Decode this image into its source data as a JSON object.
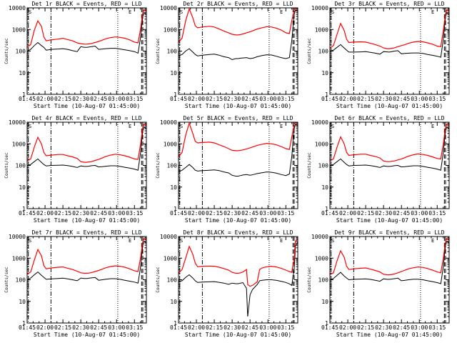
{
  "shared": {
    "xlabel": "Start Time (10-Aug-07 01:45:00)",
    "ylabel": "Counts/sec",
    "x_tick_labels": [
      "01:45",
      "02:00",
      "02:15",
      "02:30",
      "02:45",
      "03:00",
      "03:15"
    ],
    "y_tick_labels": [
      "1",
      "10",
      "100",
      "1000",
      "10000"
    ],
    "annotation_left": "S",
    "annotation_right": "E",
    "colors": {
      "events": "#000000",
      "lld": "#ff0000",
      "axes": "#000000"
    }
  },
  "chart_data": [
    {
      "type": "line",
      "title": "Det 1r BLACK = Events, RED = LLD",
      "x_unit": "minutes after 01:45",
      "xlim": [
        0,
        100
      ],
      "ylog": true,
      "ylim": [
        1,
        10000
      ],
      "x": [
        0,
        3,
        6,
        9,
        12,
        14,
        16,
        20,
        26,
        30,
        34,
        38,
        42,
        45,
        48,
        50,
        52,
        54,
        57,
        60,
        63,
        66,
        70,
        74,
        78,
        82,
        86,
        90,
        93,
        95,
        97,
        98,
        100
      ],
      "series": [
        {
          "name": "LLD",
          "values": [
            150,
            200,
            900,
            2500,
            1400,
            450,
            300,
            330,
            360,
            390,
            340,
            300,
            240,
            220,
            210,
            210,
            215,
            225,
            250,
            280,
            320,
            370,
            420,
            450,
            430,
            390,
            330,
            260,
            240,
            1000,
            6000,
            8000,
            7000
          ]
        },
        {
          "name": "Events",
          "values": [
            100,
            120,
            180,
            250,
            180,
            150,
            110,
            120,
            125,
            130,
            120,
            105,
            95,
            160,
            150,
            150,
            155,
            160,
            170,
            120,
            125,
            130,
            135,
            135,
            125,
            115,
            105,
            95,
            80,
            400,
            4000,
            6000,
            5000
          ]
        }
      ],
      "vlines_dashdot": [
        1,
        20
      ],
      "vlines_dotted": [
        76
      ],
      "vlines_dashed": [
        96,
        97
      ]
    },
    {
      "type": "line",
      "title": "Det 2r BLACK = Events, RED = LLD",
      "x_unit": "minutes after 01:45",
      "xlim": [
        0,
        100
      ],
      "ylog": true,
      "ylim": [
        1,
        10000
      ],
      "x": [
        0,
        3,
        6,
        9,
        12,
        14,
        16,
        20,
        26,
        30,
        34,
        38,
        42,
        45,
        48,
        50,
        52,
        54,
        57,
        60,
        63,
        66,
        70,
        74,
        78,
        82,
        86,
        90,
        93,
        95,
        97,
        98,
        100
      ],
      "series": [
        {
          "name": "LLD",
          "values": [
            250,
            400,
            2500,
            9000,
            3500,
            1500,
            1200,
            1300,
            1400,
            1300,
            1050,
            850,
            700,
            600,
            560,
            560,
            580,
            620,
            700,
            780,
            900,
            1050,
            1200,
            1350,
            1300,
            1150,
            950,
            700,
            650,
            2500,
            8000,
            9500,
            9000
          ]
        },
        {
          "name": "Events",
          "values": [
            60,
            70,
            100,
            130,
            90,
            70,
            60,
            65,
            70,
            72,
            65,
            55,
            50,
            40,
            45,
            45,
            47,
            48,
            50,
            45,
            48,
            55,
            62,
            68,
            66,
            58,
            50,
            45,
            50,
            300,
            5000,
            8000,
            7000
          ]
        }
      ],
      "vlines_dashdot": [
        1,
        20
      ],
      "vlines_dotted": [
        76
      ],
      "vlines_dashed": [
        96,
        97
      ]
    },
    {
      "type": "line",
      "title": "Det 3r BLACK = Events, RED = LLD",
      "x_unit": "minutes after 01:45",
      "xlim": [
        0,
        100
      ],
      "ylog": true,
      "ylim": [
        1,
        10000
      ],
      "x": [
        0,
        3,
        6,
        9,
        12,
        14,
        16,
        20,
        26,
        30,
        34,
        38,
        42,
        45,
        48,
        50,
        52,
        54,
        57,
        60,
        63,
        66,
        70,
        74,
        78,
        82,
        86,
        90,
        93,
        95,
        97,
        98,
        100
      ],
      "series": [
        {
          "name": "LLD",
          "values": [
            140,
            180,
            600,
            1900,
            900,
            350,
            250,
            260,
            270,
            260,
            230,
            200,
            170,
            140,
            130,
            130,
            135,
            140,
            160,
            180,
            200,
            230,
            260,
            280,
            270,
            240,
            210,
            170,
            160,
            800,
            5500,
            8000,
            7000
          ]
        },
        {
          "name": "Events",
          "values": [
            100,
            110,
            150,
            200,
            140,
            110,
            90,
            90,
            92,
            94,
            88,
            80,
            72,
            95,
            92,
            90,
            95,
            100,
            105,
            75,
            78,
            80,
            82,
            82,
            78,
            70,
            64,
            58,
            52,
            300,
            4000,
            6000,
            5000
          ]
        }
      ],
      "vlines_dashdot": [
        1,
        20
      ],
      "vlines_dotted": [
        76
      ],
      "vlines_dashed": [
        96,
        97
      ]
    },
    {
      "type": "line",
      "title": "Det 4r BLACK = Events, RED = LLD",
      "x_unit": "minutes after 01:45",
      "xlim": [
        0,
        100
      ],
      "ylog": true,
      "ylim": [
        1,
        10000
      ],
      "x": [
        0,
        3,
        6,
        9,
        12,
        14,
        16,
        20,
        26,
        30,
        34,
        38,
        42,
        45,
        48,
        50,
        52,
        54,
        57,
        60,
        63,
        66,
        70,
        74,
        78,
        82,
        86,
        90,
        93,
        95,
        97,
        98,
        100
      ],
      "series": [
        {
          "name": "LLD",
          "values": [
            160,
            200,
            700,
            2000,
            1000,
            400,
            280,
            300,
            320,
            320,
            280,
            250,
            210,
            150,
            140,
            140,
            145,
            150,
            170,
            190,
            220,
            260,
            300,
            330,
            310,
            280,
            240,
            200,
            190,
            900,
            6000,
            8000,
            7000
          ]
        },
        {
          "name": "Events",
          "values": [
            100,
            110,
            150,
            200,
            140,
            110,
            95,
            100,
            102,
            104,
            98,
            90,
            80,
            95,
            90,
            90,
            93,
            97,
            100,
            85,
            88,
            92,
            96,
            96,
            90,
            82,
            75,
            68,
            60,
            350,
            4000,
            6000,
            5000
          ]
        }
      ],
      "vlines_dashdot": [
        1,
        20
      ],
      "vlines_dotted": [
        76
      ],
      "vlines_dashed": [
        96,
        97
      ]
    },
    {
      "type": "line",
      "title": "Det 5r BLACK = Events, RED = LLD",
      "x_unit": "minutes after 01:45",
      "xlim": [
        0,
        100
      ],
      "ylog": true,
      "ylim": [
        1,
        10000
      ],
      "x": [
        0,
        3,
        6,
        9,
        12,
        14,
        16,
        20,
        26,
        30,
        34,
        38,
        42,
        45,
        48,
        50,
        52,
        54,
        57,
        60,
        63,
        66,
        70,
        74,
        78,
        82,
        86,
        90,
        93,
        95,
        97,
        98,
        100
      ],
      "series": [
        {
          "name": "LLD",
          "values": [
            250,
            400,
            2500,
            9000,
            3000,
            1300,
            1100,
            1150,
            1200,
            1100,
            900,
            750,
            600,
            500,
            480,
            480,
            500,
            520,
            580,
            650,
            740,
            850,
            950,
            1050,
            1000,
            900,
            750,
            600,
            550,
            2000,
            8000,
            9500,
            9000
          ]
        },
        {
          "name": "Events",
          "values": [
            50,
            60,
            80,
            110,
            80,
            60,
            55,
            58,
            60,
            62,
            58,
            50,
            45,
            35,
            32,
            32,
            34,
            36,
            38,
            35,
            38,
            42,
            46,
            50,
            48,
            44,
            38,
            34,
            40,
            250,
            5000,
            8000,
            7000
          ]
        }
      ],
      "vlines_dashdot": [
        1,
        20
      ],
      "vlines_dotted": [
        76
      ],
      "vlines_dashed": [
        96,
        97
      ]
    },
    {
      "type": "line",
      "title": "Det 6r BLACK = Events, RED = LLD",
      "x_unit": "minutes after 01:45",
      "xlim": [
        0,
        100
      ],
      "ylog": true,
      "ylim": [
        1,
        10000
      ],
      "x": [
        0,
        3,
        6,
        9,
        12,
        14,
        16,
        20,
        26,
        30,
        34,
        38,
        42,
        45,
        48,
        50,
        52,
        54,
        57,
        60,
        63,
        66,
        70,
        74,
        78,
        82,
        86,
        90,
        93,
        95,
        97,
        98,
        100
      ],
      "series": [
        {
          "name": "LLD",
          "values": [
            160,
            200,
            700,
            2100,
            1000,
            400,
            290,
            310,
            330,
            330,
            290,
            260,
            220,
            160,
            150,
            150,
            155,
            160,
            180,
            200,
            230,
            270,
            310,
            340,
            320,
            290,
            250,
            210,
            200,
            900,
            6000,
            8000,
            7000
          ]
        },
        {
          "name": "Events",
          "values": [
            100,
            110,
            150,
            200,
            140,
            110,
            95,
            100,
            102,
            104,
            98,
            90,
            80,
            95,
            90,
            90,
            93,
            97,
            100,
            85,
            88,
            92,
            96,
            96,
            90,
            82,
            75,
            68,
            60,
            350,
            4000,
            6000,
            5000
          ]
        }
      ],
      "vlines_dashdot": [
        1,
        20
      ],
      "vlines_dotted": [
        76
      ],
      "vlines_dashed": [
        96,
        97
      ]
    },
    {
      "type": "line",
      "title": "Det 7r BLACK = Events, RED = LLD",
      "x_unit": "minutes after 01:45",
      "xlim": [
        0,
        100
      ],
      "ylog": true,
      "ylim": [
        1,
        10000
      ],
      "x": [
        0,
        3,
        6,
        9,
        12,
        14,
        16,
        20,
        26,
        30,
        34,
        38,
        42,
        45,
        48,
        50,
        52,
        54,
        57,
        60,
        63,
        66,
        70,
        74,
        78,
        82,
        86,
        90,
        93,
        95,
        97,
        98,
        100
      ],
      "series": [
        {
          "name": "LLD",
          "values": [
            180,
            230,
            800,
            2500,
            1300,
            450,
            320,
            350,
            380,
            390,
            340,
            300,
            250,
            210,
            200,
            200,
            205,
            215,
            240,
            270,
            310,
            360,
            410,
            440,
            420,
            380,
            320,
            260,
            240,
            1000,
            6000,
            8000,
            7000
          ]
        },
        {
          "name": "Events",
          "values": [
            100,
            120,
            170,
            230,
            160,
            130,
            105,
            110,
            115,
            118,
            110,
            100,
            90,
            120,
            115,
            115,
            118,
            122,
            128,
            95,
            100,
            106,
            112,
            112,
            105,
            95,
            86,
            78,
            70,
            350,
            4000,
            6000,
            5000
          ]
        }
      ],
      "vlines_dashdot": [
        1,
        20
      ],
      "vlines_dotted": [
        76
      ],
      "vlines_dashed": [
        96,
        97
      ]
    },
    {
      "type": "line",
      "title": "Det 8r BLACK = Events, RED = LLD",
      "x_unit": "minutes after 01:45",
      "xlim": [
        0,
        100
      ],
      "ylog": true,
      "ylim": [
        1,
        10000
      ],
      "x": [
        0,
        3,
        6,
        9,
        12,
        14,
        16,
        20,
        26,
        30,
        34,
        38,
        42,
        45,
        48,
        50,
        52,
        54,
        57,
        58,
        60,
        62,
        63,
        66,
        68,
        70,
        74,
        78,
        82,
        86,
        90,
        93,
        95,
        97,
        98,
        100
      ],
      "series": [
        {
          "name": "LLD",
          "values": [
            200,
            300,
            1000,
            3500,
            1500,
            600,
            400,
            420,
            430,
            420,
            380,
            330,
            280,
            220,
            200,
            200,
            210,
            230,
            300,
            60,
            50,
            55,
            60,
            80,
            300,
            350,
            400,
            420,
            390,
            340,
            280,
            240,
            220,
            1000,
            6000,
            8000
          ]
        },
        {
          "name": "Events",
          "values": [
            80,
            90,
            130,
            170,
            120,
            90,
            75,
            78,
            80,
            82,
            76,
            70,
            62,
            70,
            66,
            66,
            70,
            74,
            40,
            2,
            20,
            35,
            40,
            60,
            90,
            95,
            100,
            100,
            95,
            85,
            75,
            65,
            55,
            300,
            3500,
            5500
          ]
        }
      ],
      "vlines_dashdot": [
        1,
        20
      ],
      "vlines_dotted": [
        76
      ],
      "vlines_dashed": [
        96,
        97
      ]
    },
    {
      "type": "line",
      "title": "Det 9r BLACK = Events, RED = LLD",
      "x_unit": "minutes after 01:45",
      "xlim": [
        0,
        100
      ],
      "ylog": true,
      "ylim": [
        1,
        10000
      ],
      "x": [
        0,
        3,
        6,
        9,
        12,
        14,
        16,
        20,
        26,
        30,
        34,
        38,
        42,
        45,
        48,
        50,
        52,
        54,
        57,
        60,
        63,
        66,
        70,
        74,
        78,
        82,
        86,
        90,
        93,
        95,
        97,
        98,
        100
      ],
      "series": [
        {
          "name": "LLD",
          "values": [
            170,
            210,
            750,
            2200,
            1100,
            420,
            300,
            320,
            340,
            350,
            310,
            270,
            230,
            180,
            170,
            170,
            175,
            185,
            210,
            240,
            280,
            320,
            360,
            390,
            370,
            330,
            280,
            230,
            210,
            900,
            6000,
            8000,
            7000
          ]
        },
        {
          "name": "Events",
          "values": [
            100,
            115,
            160,
            220,
            150,
            120,
            100,
            105,
            108,
            110,
            104,
            95,
            85,
            110,
            105,
            105,
            108,
            112,
            118,
            90,
            94,
            100,
            106,
            106,
            100,
            90,
            82,
            74,
            66,
            350,
            4000,
            6000,
            5000
          ]
        }
      ],
      "vlines_dashdot": [
        1,
        20
      ],
      "vlines_dotted": [
        76
      ],
      "vlines_dashed": [
        96,
        97
      ]
    }
  ]
}
